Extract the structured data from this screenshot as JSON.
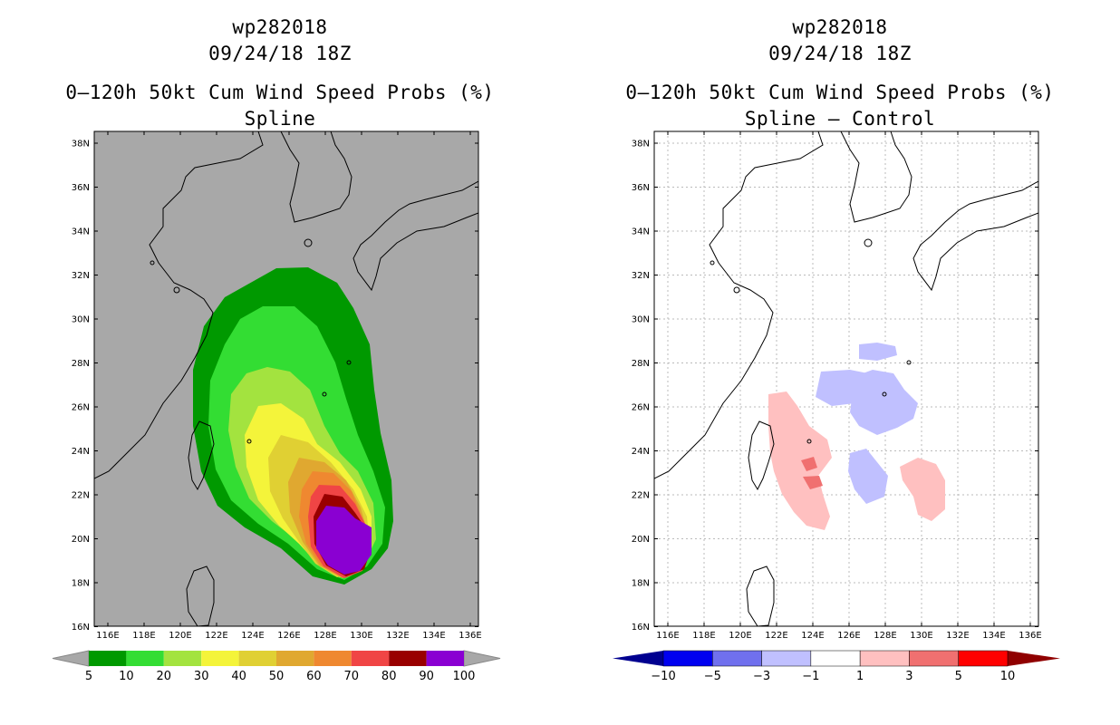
{
  "left": {
    "storm_id": "wp282018",
    "datetime": "09/24/18 18Z",
    "product": "0–120h 50kt Cum Wind Speed Probs (%)",
    "subtitle": "Spline",
    "background": "#a8a8a8",
    "lat_labels": [
      "38N",
      "36N",
      "34N",
      "32N",
      "30N",
      "28N",
      "26N",
      "24N",
      "22N",
      "20N",
      "18N",
      "16N"
    ],
    "lon_labels": [
      "116E",
      "118E",
      "120E",
      "122E",
      "124E",
      "126E",
      "128E",
      "130E",
      "132E",
      "134E",
      "136E"
    ],
    "colorbar": {
      "colors": [
        "#009900",
        "#33dd33",
        "#a3e33f",
        "#f4f43a",
        "#e0d033",
        "#e0a830",
        "#ef8830",
        "#f04545",
        "#990000",
        "#8a00d2"
      ],
      "arrow_color": "#a8a8a8",
      "labels": [
        "5",
        "10",
        "20",
        "30",
        "40",
        "50",
        "60",
        "70",
        "80",
        "90",
        "100"
      ]
    }
  },
  "right": {
    "storm_id": "wp282018",
    "datetime": "09/24/18 18Z",
    "product": "0–120h 50kt Cum Wind Speed Probs (%)",
    "subtitle": "Spline – Control",
    "background": "#ffffff",
    "lat_labels": [
      "38N",
      "36N",
      "34N",
      "32N",
      "30N",
      "28N",
      "26N",
      "24N",
      "22N",
      "20N",
      "18N",
      "16N"
    ],
    "lon_labels": [
      "116E",
      "118E",
      "120E",
      "122E",
      "124E",
      "126E",
      "128E",
      "130E",
      "132E",
      "134E",
      "136E"
    ],
    "colorbar": {
      "colors": [
        "#0000f0",
        "#7070ee",
        "#c0c0ff",
        "#ffffff",
        "#ffc0c0",
        "#f07070",
        "#ff0000"
      ],
      "low_arrow_color": "#000090",
      "high_arrow_color": "#900000",
      "labels": [
        "−10",
        "−5",
        "−3",
        "−1",
        "1",
        "3",
        "5",
        "10"
      ]
    }
  }
}
